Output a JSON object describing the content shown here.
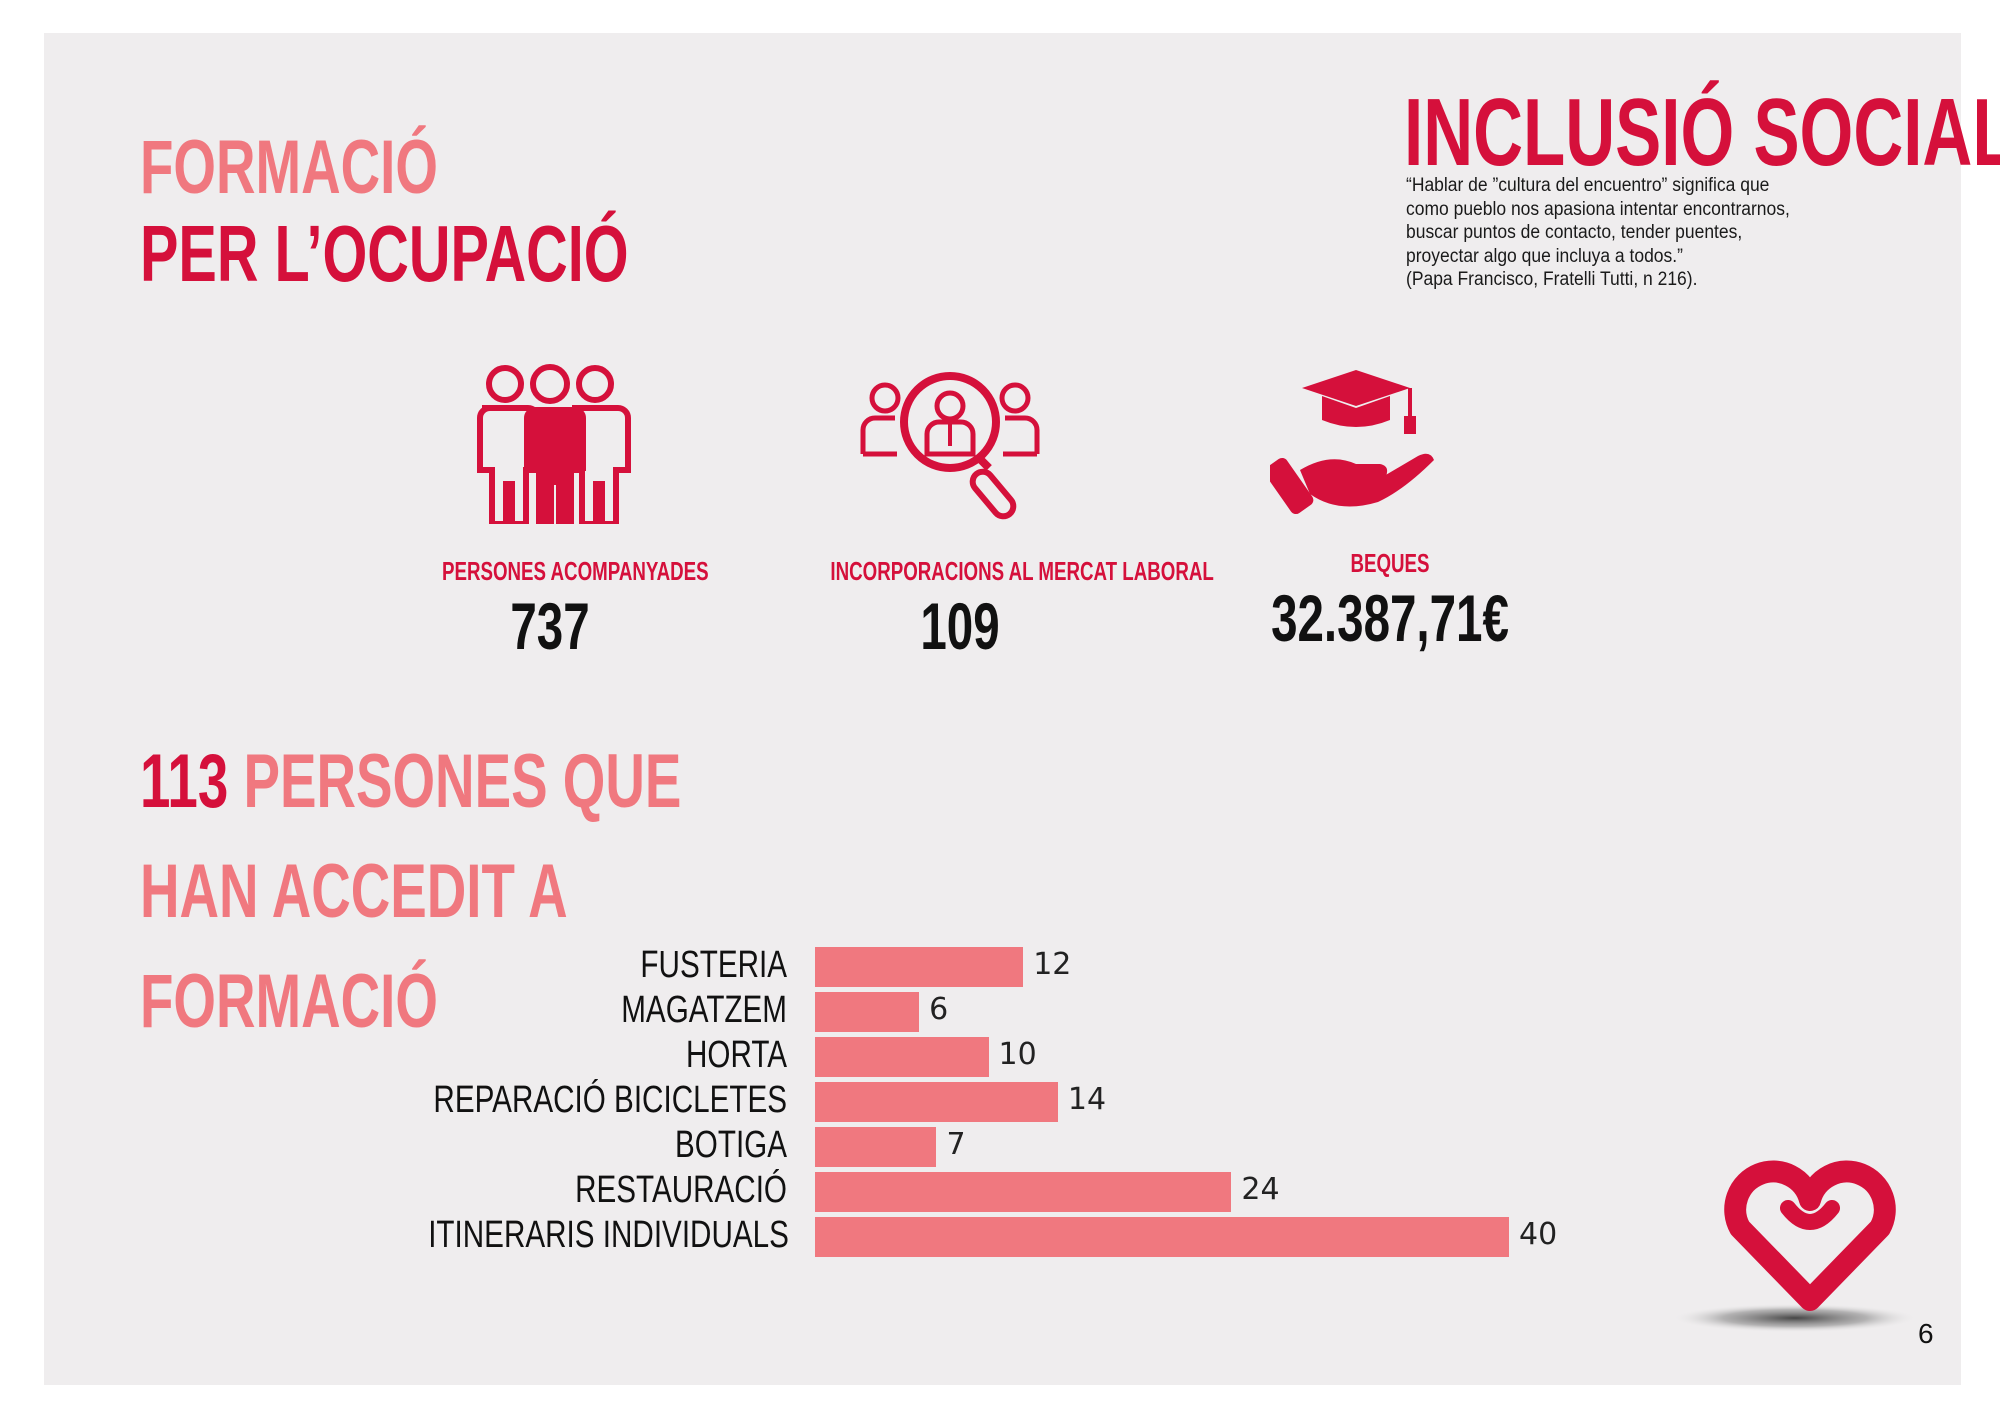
{
  "header": {
    "section_line1": "FORMACIÓ",
    "section_line2": "PER L’OCUPACIÓ",
    "main_title": "INCLUSIÓ SOCIAL",
    "quote_lines": [
      "“Hablar de ”cultura del encuentro” significa que",
      "como pueblo nos apasiona intentar encontrarnos,",
      "buscar puntos de contacto, tender puentes,",
      "proyectar algo que incluya a todos.”",
      "(Papa Francisco, Fratelli Tutti, n 216)."
    ]
  },
  "stats": [
    {
      "label": "PERSONES ACOMPANYADES",
      "value": "737",
      "icon": "people-group-icon"
    },
    {
      "label": "INCORPORACIONS AL MERCAT LABORAL",
      "value": "109",
      "icon": "magnifier-person-icon"
    },
    {
      "label": "BEQUES",
      "value": "32.387,71€",
      "icon": "hand-graduation-cap-icon"
    }
  ],
  "training": {
    "count": "113",
    "heading_rest_line1": "PERSONES QUE",
    "heading_line2": "HAN ACCEDIT A",
    "heading_line3": "FORMACIÓ"
  },
  "chart_data": {
    "type": "bar",
    "orientation": "horizontal",
    "categories": [
      "FUSTERIA",
      "MAGATZEM",
      "HORTA",
      "REPARACIÓ BICICLETES",
      "BOTIGA",
      "RESTAURACIÓ",
      "ITINERARIS INDIVIDUALS"
    ],
    "values": [
      12,
      6,
      10,
      14,
      7,
      24,
      40
    ],
    "data_labels": [
      "12",
      "6",
      "10",
      "14",
      "7",
      "24",
      "40"
    ],
    "bar_color": "#f0787f",
    "title": "",
    "xlabel": "",
    "ylabel": "",
    "grid": false
  },
  "colors": {
    "accent": "#d5103b",
    "light_accent": "#f0787f",
    "page_bg": "#efedee"
  },
  "footer": {
    "logo_icon": "heart-logo-icon",
    "page_number": "6"
  }
}
